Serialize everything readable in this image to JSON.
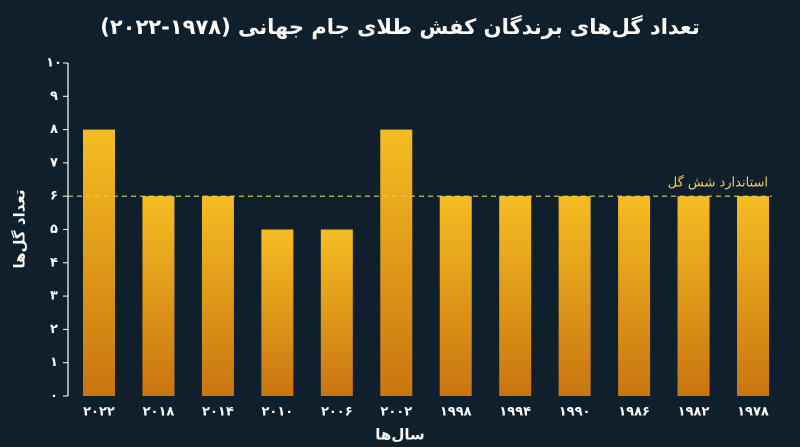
{
  "chart_data": {
    "type": "bar",
    "title": "تعداد گل‌های برندگان کفش طلای جام جهانی (۱۹۷۸-۲۰۲۲)",
    "x_label": "سال‌ها",
    "y_label": "تعداد گل‌ها",
    "categories": [
      "۲۰۲۲",
      "۲۰۱۸",
      "۲۰۱۴",
      "۲۰۱۰",
      "۲۰۰۶",
      "۲۰۰۲",
      "۱۹۹۸",
      "۱۹۹۴",
      "۱۹۹۰",
      "۱۹۸۶",
      "۱۹۸۲",
      "۱۹۷۸"
    ],
    "values": [
      8,
      6,
      6,
      5,
      5,
      8,
      6,
      6,
      6,
      6,
      6,
      6
    ],
    "color": "#f5bd22",
    "ylim": [
      0,
      10
    ],
    "yticks": [
      {
        "value": 0,
        "label": "۰"
      },
      {
        "value": 1,
        "label": "۱"
      },
      {
        "value": 2,
        "label": "۲"
      },
      {
        "value": 3,
        "label": "۳"
      },
      {
        "value": 4,
        "label": "۴"
      },
      {
        "value": 5,
        "label": "۵"
      },
      {
        "value": 6,
        "label": "۶"
      },
      {
        "value": 7,
        "label": "۷"
      },
      {
        "value": 8,
        "label": "۸"
      },
      {
        "value": 9,
        "label": "۹"
      },
      {
        "value": 10,
        "label": "۱۰"
      }
    ],
    "reference_line": {
      "value": 6,
      "label": "استاندارد شش گل"
    }
  }
}
